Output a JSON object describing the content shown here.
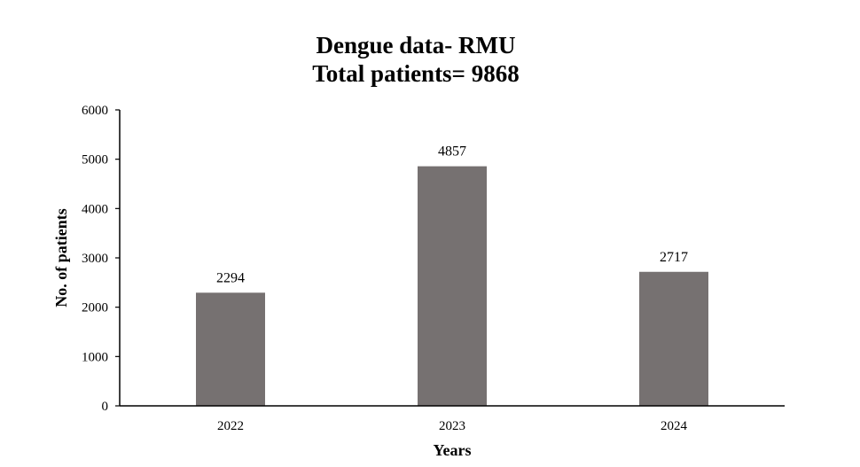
{
  "chart_data": {
    "type": "bar",
    "title": "Dengue data- RMU",
    "subtitle": "Total patients= 9868",
    "xlabel": "Years",
    "ylabel": "No. of patients",
    "categories": [
      "2022",
      "2023",
      "2024"
    ],
    "values": [
      2294,
      4857,
      2717
    ],
    "data_labels": [
      "2294",
      "4857",
      "2717"
    ],
    "ylim": [
      0,
      6000
    ],
    "yticks": [
      0,
      1000,
      2000,
      3000,
      4000,
      5000,
      6000
    ],
    "grid": false,
    "legend": "none",
    "bar_color": "#767171"
  }
}
